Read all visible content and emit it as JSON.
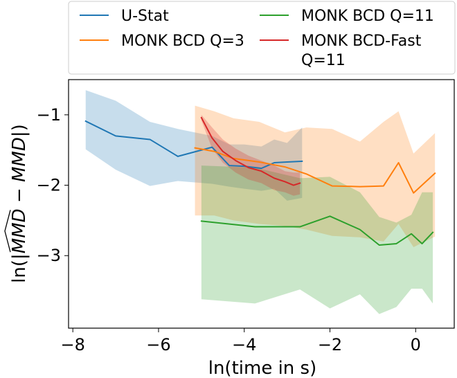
{
  "chart_data": {
    "type": "line",
    "title": "",
    "xlabel": "ln(time in s)",
    "ylabel": "ln(|MMD-hat − MMD|)",
    "ylabel_parts": {
      "prefix": "ln(|",
      "hat": "MMD",
      "middle": " − ",
      "plain": "MMD",
      "suffix": "|)"
    },
    "xlim": [
      -8.1,
      0.9
    ],
    "ylim": [
      -4.03,
      -0.5
    ],
    "xticks": [
      -8,
      -6,
      -4,
      -2,
      0
    ],
    "xtick_labels": [
      "−8",
      "−6",
      "−4",
      "−2",
      "0"
    ],
    "yticks": [
      -1,
      -2,
      -3
    ],
    "ytick_labels": [
      "−1",
      "−2",
      "−3"
    ],
    "grid": false,
    "legend_position": "above plot",
    "series": [
      {
        "name": "U-Stat",
        "legend_lines": [
          "U-Stat"
        ],
        "color": "#1f77b4",
        "x": [
          -7.7,
          -7.0,
          -6.2,
          -5.55,
          -4.75,
          -4.35,
          -4.0,
          -3.6,
          -3.3,
          -3.0,
          -2.65
        ],
        "y": [
          -1.09,
          -1.3,
          -1.35,
          -1.59,
          -1.46,
          -1.72,
          -1.73,
          -1.76,
          -1.68,
          -1.67,
          -1.66
        ],
        "band_upper": [
          -0.65,
          -0.8,
          -1.1,
          -1.2,
          -1.3,
          -1.42,
          -1.42,
          -1.45,
          -1.35,
          -1.4,
          -1.18
        ],
        "band_lower": [
          -1.49,
          -1.78,
          -2.01,
          -1.94,
          -1.98,
          -2.02,
          -2.05,
          -2.08,
          -2.05,
          -2.22,
          -2.18
        ]
      },
      {
        "name": "MONK BCD Q=3",
        "legend_lines": [
          "MONK BCD Q=3"
        ],
        "color": "#ff7f0e",
        "x": [
          -5.15,
          -4.7,
          -4.25,
          -3.65,
          -3.05,
          -2.55,
          -1.95,
          -1.3,
          -0.75,
          -0.4,
          -0.05,
          0.45
        ],
        "y": [
          -1.47,
          -1.52,
          -1.62,
          -1.67,
          -1.74,
          -1.84,
          -2.01,
          -2.02,
          -2.01,
          -1.68,
          -2.11,
          -1.83
        ],
        "band_upper": [
          -0.87,
          -0.95,
          -1.05,
          -1.1,
          -1.25,
          -1.18,
          -1.2,
          -1.38,
          -1.1,
          -0.95,
          -1.55,
          -1.26
        ],
        "band_lower": [
          -2.43,
          -2.43,
          -2.5,
          -2.55,
          -2.58,
          -2.63,
          -2.72,
          -2.74,
          -2.8,
          -2.55,
          -2.88,
          -2.73
        ]
      },
      {
        "name": "MONK BCD Q=11",
        "legend_lines": [
          "MONK BCD Q=11"
        ],
        "color": "#2ca02c",
        "x": [
          -5.0,
          -3.75,
          -2.7,
          -2.0,
          -1.3,
          -0.85,
          -0.45,
          -0.1,
          0.15,
          0.4
        ],
        "y": [
          -2.51,
          -2.59,
          -2.59,
          -2.44,
          -2.63,
          -2.85,
          -2.83,
          -2.69,
          -2.83,
          -2.67
        ],
        "band_upper": [
          -1.72,
          -1.75,
          -1.9,
          -1.88,
          -2.1,
          -2.45,
          -2.53,
          -2.42,
          -2.1,
          -2.1
        ],
        "band_lower": [
          -3.62,
          -3.68,
          -3.48,
          -3.75,
          -3.55,
          -3.83,
          -3.73,
          -3.47,
          -3.47,
          -3.68
        ]
      },
      {
        "name": "MONK BCD-Fast Q=11",
        "legend_lines": [
          "MONK BCD-Fast",
          " Q=11"
        ],
        "color": "#d62728",
        "x": [
          -5.0,
          -4.75,
          -4.5,
          -4.2,
          -3.9,
          -3.6,
          -3.3,
          -3.05,
          -2.85,
          -2.7
        ],
        "y": [
          -1.04,
          -1.33,
          -1.52,
          -1.65,
          -1.75,
          -1.8,
          -1.9,
          -1.95,
          -2.0,
          -1.97
        ],
        "band_upper": [
          -1.0,
          -1.18,
          -1.35,
          -1.48,
          -1.58,
          -1.65,
          -1.72,
          -1.8,
          -1.82,
          -1.82
        ],
        "band_lower": [
          -1.08,
          -1.48,
          -1.68,
          -1.82,
          -1.92,
          -1.97,
          -2.07,
          -2.1,
          -2.15,
          -2.13
        ]
      }
    ]
  }
}
